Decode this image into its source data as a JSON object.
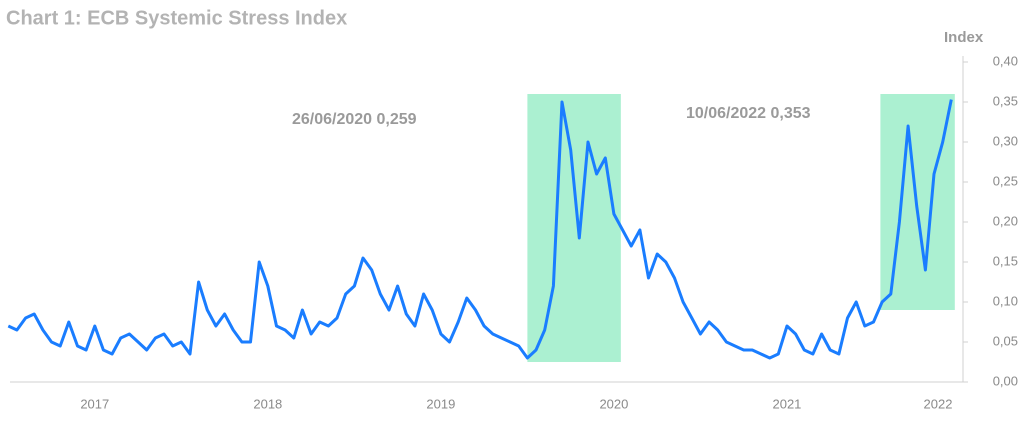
{
  "chart_data": {
    "type": "line",
    "title": "Chart 1: ECB Systemic Stress Index",
    "y_label": "Index",
    "annotations": [
      "26/06/2020 0,259",
      "10/06/2022 0,353"
    ],
    "x": [
      2016.5,
      2016.55,
      2016.6,
      2016.65,
      2016.7,
      2016.75,
      2016.8,
      2016.85,
      2016.9,
      2016.95,
      2017.0,
      2017.05,
      2017.1,
      2017.15,
      2017.2,
      2017.25,
      2017.3,
      2017.35,
      2017.4,
      2017.45,
      2017.5,
      2017.55,
      2017.6,
      2017.65,
      2017.7,
      2017.75,
      2017.8,
      2017.85,
      2017.9,
      2017.95,
      2018.0,
      2018.05,
      2018.1,
      2018.15,
      2018.2,
      2018.25,
      2018.3,
      2018.35,
      2018.4,
      2018.45,
      2018.5,
      2018.55,
      2018.6,
      2018.65,
      2018.7,
      2018.75,
      2018.8,
      2018.85,
      2018.9,
      2018.95,
      2019.0,
      2019.05,
      2019.1,
      2019.15,
      2019.2,
      2019.25,
      2019.3,
      2019.35,
      2019.4,
      2019.45,
      2019.5,
      2019.55,
      2019.6,
      2019.65,
      2019.7,
      2019.75,
      2019.8,
      2019.85,
      2019.9,
      2019.95,
      2020.0,
      2020.05,
      2020.1,
      2020.15,
      2020.2,
      2020.25,
      2020.3,
      2020.35,
      2020.4,
      2020.45,
      2020.5,
      2020.55,
      2020.6,
      2020.65,
      2020.7,
      2020.75,
      2020.8,
      2020.85,
      2020.9,
      2020.95,
      2021.0,
      2021.05,
      2021.1,
      2021.15,
      2021.2,
      2021.25,
      2021.3,
      2021.35,
      2021.4,
      2021.45,
      2021.5,
      2021.55,
      2021.6,
      2021.65,
      2021.7,
      2021.75,
      2021.8,
      2021.85,
      2021.9,
      2021.95
    ],
    "series": [
      {
        "color": "#1a7dff",
        "values": [
          0.07,
          0.065,
          0.08,
          0.085,
          0.065,
          0.05,
          0.045,
          0.075,
          0.045,
          0.04,
          0.07,
          0.04,
          0.035,
          0.055,
          0.06,
          0.05,
          0.04,
          0.055,
          0.06,
          0.045,
          0.05,
          0.035,
          0.125,
          0.09,
          0.07,
          0.085,
          0.065,
          0.05,
          0.05,
          0.15,
          0.12,
          0.07,
          0.065,
          0.055,
          0.09,
          0.06,
          0.075,
          0.07,
          0.08,
          0.11,
          0.12,
          0.155,
          0.14,
          0.11,
          0.09,
          0.12,
          0.085,
          0.07,
          0.11,
          0.09,
          0.06,
          0.05,
          0.075,
          0.105,
          0.09,
          0.07,
          0.06,
          0.055,
          0.05,
          0.045,
          0.03,
          0.04,
          0.065,
          0.12,
          0.35,
          0.29,
          0.18,
          0.3,
          0.26,
          0.28,
          0.21,
          0.19,
          0.17,
          0.19,
          0.13,
          0.16,
          0.15,
          0.13,
          0.1,
          0.08,
          0.06,
          0.075,
          0.065,
          0.05,
          0.045,
          0.04,
          0.04,
          0.035,
          0.03,
          0.035,
          0.07,
          0.06,
          0.04,
          0.035,
          0.06,
          0.04,
          0.035,
          0.08,
          0.1,
          0.07,
          0.075,
          0.1,
          0.11,
          0.2,
          0.32,
          0.22,
          0.14,
          0.26,
          0.3,
          0.353
        ]
      }
    ],
    "highlight_color": "#abf0d1",
    "highlights": [
      {
        "xlim": [
          2019.5,
          2020.04
        ],
        "ylim": [
          0.025,
          0.36
        ]
      },
      {
        "xlim": [
          2021.54,
          2021.97
        ],
        "ylim": [
          0.09,
          0.36
        ]
      }
    ],
    "xlim": [
      2016.51,
      2022.0
    ],
    "xticks": [
      2017,
      2018,
      2019,
      2020,
      2021,
      2022
    ],
    "ylim": [
      0,
      0.4
    ],
    "yticks": [
      {
        "value": 0,
        "label": "0,00"
      },
      {
        "value": 0.05,
        "label": "0,05"
      },
      {
        "value": 0.1,
        "label": "0,10"
      },
      {
        "value": 0.15,
        "label": "0,15"
      },
      {
        "value": 0.2,
        "label": "0,20"
      },
      {
        "value": 0.25,
        "label": "0,25"
      },
      {
        "value": 0.3,
        "label": "0,30"
      },
      {
        "value": 0.35,
        "label": "0,35"
      },
      {
        "value": 0.4,
        "label": "0,40"
      }
    ],
    "grid": false
  }
}
